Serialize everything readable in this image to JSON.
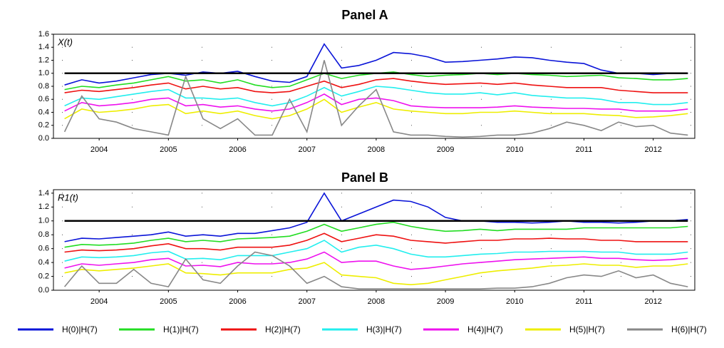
{
  "chart_data": [
    {
      "type": "line",
      "title": "Panel A",
      "y_label": "X(t)",
      "x": [
        2004,
        2004.25,
        2004.5,
        2004.75,
        2005,
        2005.25,
        2005.5,
        2005.75,
        2006,
        2006.25,
        2006.5,
        2006.75,
        2007,
        2007.25,
        2007.5,
        2007.75,
        2008,
        2008.25,
        2008.5,
        2008.75,
        2009,
        2009.25,
        2009.5,
        2009.75,
        2010,
        2010.25,
        2010.5,
        2010.75,
        2011,
        2011.25,
        2011.5,
        2011.75,
        2012,
        2012.25,
        2012.5,
        2012.75,
        2013
      ],
      "xlim": [
        2003.84,
        2013.1
      ],
      "xticks": [
        {
          "value": 2004.5,
          "label": "2004"
        },
        {
          "value": 2005.5,
          "label": "2005"
        },
        {
          "value": 2006.5,
          "label": "2006"
        },
        {
          "value": 2007.5,
          "label": "2007"
        },
        {
          "value": 2008.5,
          "label": "2008"
        },
        {
          "value": 2009.5,
          "label": "2009"
        },
        {
          "value": 2010.5,
          "label": "2010"
        },
        {
          "value": 2011.5,
          "label": "2011"
        },
        {
          "value": 2012.5,
          "label": "2012"
        }
      ],
      "ylim": [
        0,
        1.6
      ],
      "yticks": [
        {
          "value": 0,
          "label": "0.0"
        },
        0.2,
        0.4,
        0.6,
        0.8,
        {
          "value": 1,
          "label": "1.0"
        },
        1.2,
        1.4,
        1.6
      ],
      "grid": true,
      "reference_line": 1,
      "series": [
        {
          "name": "H(0)|H(7)",
          "color": "#0a14d8",
          "values": [
            0.82,
            0.9,
            0.85,
            0.88,
            0.93,
            0.98,
            1.0,
            0.97,
            1.02,
            1.0,
            1.03,
            0.95,
            0.88,
            0.86,
            0.95,
            1.45,
            1.08,
            1.12,
            1.2,
            1.32,
            1.3,
            1.25,
            1.17,
            1.18,
            1.2,
            1.22,
            1.25,
            1.24,
            1.2,
            1.17,
            1.15,
            1.05,
            1.0,
            1.0,
            0.98,
            1.0,
            1.0
          ]
        },
        {
          "name": "H(1)|H(7)",
          "color": "#22dd22",
          "values": [
            0.75,
            0.8,
            0.78,
            0.82,
            0.85,
            0.9,
            0.95,
            0.88,
            0.9,
            0.85,
            0.9,
            0.82,
            0.78,
            0.8,
            0.9,
            1.0,
            0.92,
            0.97,
            1.0,
            1.02,
            0.98,
            0.95,
            0.97,
            0.98,
            1.0,
            0.98,
            1.0,
            0.98,
            0.97,
            0.95,
            0.96,
            0.97,
            0.93,
            0.92,
            0.9,
            0.9,
            0.92
          ]
        },
        {
          "name": "H(2)|H(7)",
          "color": "#ee1111",
          "values": [
            0.7,
            0.74,
            0.72,
            0.75,
            0.78,
            0.82,
            0.85,
            0.76,
            0.8,
            0.76,
            0.78,
            0.72,
            0.7,
            0.72,
            0.8,
            0.88,
            0.78,
            0.83,
            0.9,
            0.92,
            0.88,
            0.85,
            0.83,
            0.84,
            0.85,
            0.83,
            0.85,
            0.82,
            0.8,
            0.78,
            0.78,
            0.78,
            0.74,
            0.72,
            0.7,
            0.7,
            0.7
          ]
        },
        {
          "name": "H(3)|H(7)",
          "color": "#22eeee",
          "values": [
            0.5,
            0.62,
            0.6,
            0.64,
            0.68,
            0.72,
            0.75,
            0.62,
            0.62,
            0.6,
            0.62,
            0.55,
            0.5,
            0.55,
            0.65,
            0.78,
            0.65,
            0.72,
            0.8,
            0.78,
            0.74,
            0.7,
            0.68,
            0.68,
            0.7,
            0.67,
            0.7,
            0.66,
            0.64,
            0.62,
            0.62,
            0.6,
            0.55,
            0.55,
            0.52,
            0.52,
            0.55
          ]
        },
        {
          "name": "H(4)|H(7)",
          "color": "#ee11ee",
          "values": [
            0.42,
            0.55,
            0.5,
            0.52,
            0.55,
            0.6,
            0.62,
            0.5,
            0.52,
            0.48,
            0.5,
            0.45,
            0.42,
            0.45,
            0.55,
            0.68,
            0.52,
            0.6,
            0.62,
            0.58,
            0.5,
            0.48,
            0.47,
            0.47,
            0.47,
            0.48,
            0.5,
            0.48,
            0.47,
            0.46,
            0.46,
            0.45,
            0.45,
            0.42,
            0.42,
            0.42,
            0.45
          ]
        },
        {
          "name": "H(5)|H(7)",
          "color": "#eeee00",
          "values": [
            0.3,
            0.45,
            0.4,
            0.42,
            0.45,
            0.5,
            0.52,
            0.38,
            0.42,
            0.38,
            0.42,
            0.35,
            0.3,
            0.35,
            0.45,
            0.6,
            0.4,
            0.48,
            0.55,
            0.45,
            0.42,
            0.4,
            0.38,
            0.38,
            0.4,
            0.4,
            0.42,
            0.4,
            0.38,
            0.38,
            0.38,
            0.36,
            0.35,
            0.32,
            0.33,
            0.35,
            0.38
          ]
        },
        {
          "name": "H(6)|H(7)",
          "color": "#888888",
          "values": [
            0.1,
            0.65,
            0.3,
            0.25,
            0.15,
            0.1,
            0.05,
            0.95,
            0.3,
            0.15,
            0.3,
            0.05,
            0.05,
            0.6,
            0.1,
            1.2,
            0.2,
            0.5,
            0.75,
            0.1,
            0.05,
            0.05,
            0.03,
            0.02,
            0.03,
            0.05,
            0.05,
            0.08,
            0.15,
            0.25,
            0.2,
            0.12,
            0.25,
            0.18,
            0.2,
            0.08,
            0.05
          ]
        }
      ]
    },
    {
      "type": "line",
      "title": "Panel B",
      "y_label": "R1(t)",
      "x": [
        2004,
        2004.25,
        2004.5,
        2004.75,
        2005,
        2005.25,
        2005.5,
        2005.75,
        2006,
        2006.25,
        2006.5,
        2006.75,
        2007,
        2007.25,
        2007.5,
        2007.75,
        2008,
        2008.25,
        2008.5,
        2008.75,
        2009,
        2009.25,
        2009.5,
        2009.75,
        2010,
        2010.25,
        2010.5,
        2010.75,
        2011,
        2011.25,
        2011.5,
        2011.75,
        2012,
        2012.25,
        2012.5,
        2012.75,
        2013
      ],
      "xlim": [
        2003.84,
        2013.1
      ],
      "xticks": [
        {
          "value": 2004.5,
          "label": "2004"
        },
        {
          "value": 2005.5,
          "label": "2005"
        },
        {
          "value": 2006.5,
          "label": "2006"
        },
        {
          "value": 2007.5,
          "label": "2007"
        },
        {
          "value": 2008.5,
          "label": "2008"
        },
        {
          "value": 2009.5,
          "label": "2009"
        },
        {
          "value": 2010.5,
          "label": "2010"
        },
        {
          "value": 2011.5,
          "label": "2011"
        },
        {
          "value": 2012.5,
          "label": "2012"
        }
      ],
      "ylim": [
        0,
        1.45
      ],
      "yticks": [
        {
          "value": 0,
          "label": "0.0"
        },
        0.2,
        0.4,
        0.6,
        0.8,
        {
          "value": 1,
          "label": "1.0"
        },
        1.2,
        1.4
      ],
      "grid": true,
      "reference_line": 1,
      "series": [
        {
          "color": "#0a14d8",
          "values": [
            0.7,
            0.75,
            0.74,
            0.76,
            0.78,
            0.8,
            0.84,
            0.78,
            0.8,
            0.78,
            0.82,
            0.82,
            0.86,
            0.9,
            0.98,
            1.4,
            1.0,
            1.1,
            1.2,
            1.3,
            1.28,
            1.2,
            1.05,
            1.0,
            1.0,
            0.98,
            0.98,
            0.97,
            0.98,
            1.0,
            0.98,
            0.98,
            0.97,
            0.98,
            1.0,
            1.0,
            1.02
          ]
        },
        {
          "color": "#22dd22",
          "values": [
            0.62,
            0.66,
            0.65,
            0.66,
            0.68,
            0.72,
            0.75,
            0.7,
            0.72,
            0.7,
            0.74,
            0.75,
            0.76,
            0.78,
            0.85,
            0.95,
            0.85,
            0.9,
            0.95,
            0.98,
            0.92,
            0.88,
            0.85,
            0.86,
            0.88,
            0.86,
            0.88,
            0.88,
            0.88,
            0.88,
            0.9,
            0.9,
            0.9,
            0.9,
            0.9,
            0.9,
            0.92
          ]
        },
        {
          "color": "#ee1111",
          "values": [
            0.55,
            0.58,
            0.57,
            0.58,
            0.6,
            0.64,
            0.67,
            0.6,
            0.6,
            0.58,
            0.62,
            0.62,
            0.62,
            0.65,
            0.72,
            0.82,
            0.7,
            0.75,
            0.8,
            0.78,
            0.72,
            0.7,
            0.68,
            0.7,
            0.72,
            0.72,
            0.74,
            0.74,
            0.75,
            0.74,
            0.74,
            0.72,
            0.72,
            0.7,
            0.7,
            0.7,
            0.7
          ]
        },
        {
          "color": "#22eeee",
          "values": [
            0.42,
            0.48,
            0.47,
            0.48,
            0.5,
            0.54,
            0.56,
            0.45,
            0.46,
            0.44,
            0.5,
            0.5,
            0.5,
            0.55,
            0.6,
            0.72,
            0.55,
            0.62,
            0.65,
            0.6,
            0.52,
            0.48,
            0.48,
            0.5,
            0.52,
            0.53,
            0.55,
            0.55,
            0.56,
            0.56,
            0.56,
            0.55,
            0.55,
            0.52,
            0.52,
            0.52,
            0.55
          ]
        },
        {
          "color": "#ee11ee",
          "values": [
            0.32,
            0.38,
            0.36,
            0.38,
            0.4,
            0.44,
            0.46,
            0.35,
            0.36,
            0.34,
            0.4,
            0.38,
            0.38,
            0.4,
            0.45,
            0.55,
            0.4,
            0.42,
            0.42,
            0.35,
            0.3,
            0.32,
            0.35,
            0.38,
            0.4,
            0.42,
            0.44,
            0.45,
            0.46,
            0.47,
            0.48,
            0.46,
            0.46,
            0.44,
            0.43,
            0.44,
            0.46
          ]
        },
        {
          "color": "#eeee00",
          "values": [
            0.25,
            0.3,
            0.28,
            0.3,
            0.32,
            0.35,
            0.38,
            0.25,
            0.24,
            0.22,
            0.25,
            0.25,
            0.25,
            0.3,
            0.32,
            0.4,
            0.22,
            0.2,
            0.18,
            0.1,
            0.08,
            0.1,
            0.15,
            0.2,
            0.25,
            0.28,
            0.3,
            0.32,
            0.35,
            0.36,
            0.38,
            0.36,
            0.36,
            0.33,
            0.35,
            0.35,
            0.38
          ]
        },
        {
          "color": "#888888",
          "values": [
            0.05,
            0.35,
            0.1,
            0.1,
            0.3,
            0.1,
            0.05,
            0.45,
            0.15,
            0.1,
            0.35,
            0.55,
            0.5,
            0.35,
            0.1,
            0.2,
            0.05,
            0.02,
            0.02,
            0.02,
            0.02,
            0.02,
            0.02,
            0.02,
            0.02,
            0.03,
            0.03,
            0.05,
            0.1,
            0.18,
            0.22,
            0.2,
            0.28,
            0.18,
            0.22,
            0.1,
            0.05
          ]
        }
      ]
    }
  ]
}
